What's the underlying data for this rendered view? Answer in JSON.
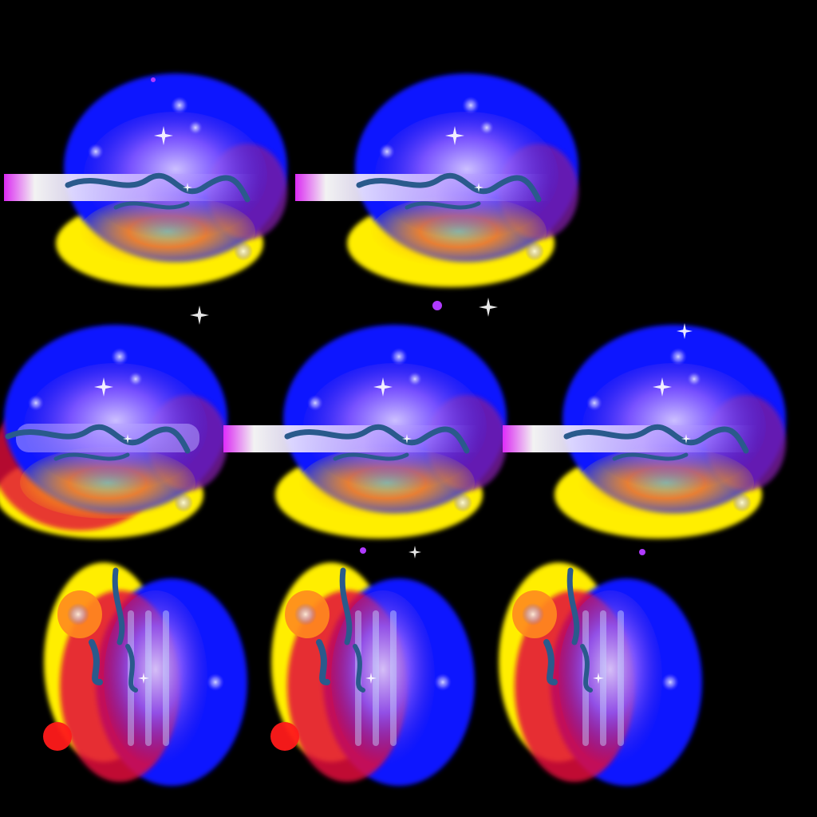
{
  "sprite_sheet": {
    "background": "#000000",
    "palette": {
      "outer_glow": "#0a14ff",
      "core_violet": "#8a4cff",
      "core_light": "#c8b8ff",
      "warm_glow": "#ffee00",
      "warm_orange": "#ff8a1e",
      "warm_red": "#e2103c",
      "crack": "#2a5a8c",
      "beam": "#f4eaff",
      "beam_magenta": "#e62cff",
      "sparkle": "#ffffff"
    },
    "rows": [
      {
        "orientation": "horizontal",
        "frames": [
          {
            "beam": true,
            "warm_only_bottom": true
          },
          {
            "beam": true,
            "warm_only_bottom": true
          }
        ]
      },
      {
        "orientation": "horizontal",
        "frames": [
          {
            "beam": false,
            "warm_only_bottom": false
          },
          {
            "beam": true,
            "warm_only_bottom": true
          },
          {
            "beam": true,
            "warm_only_bottom": true
          }
        ]
      },
      {
        "orientation": "vertical",
        "frames": [
          {
            "red_orb": true
          },
          {
            "red_orb": true
          },
          {
            "red_orb": false
          }
        ]
      }
    ]
  }
}
